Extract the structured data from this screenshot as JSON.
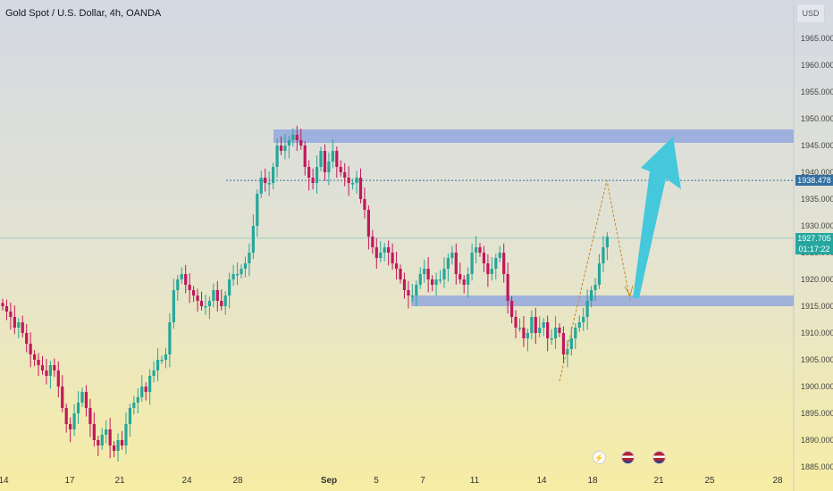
{
  "header": {
    "symbol_title": "Gold Spot / U.S. Dollar, 4h, OANDA",
    "currency": "USD"
  },
  "price_axis": {
    "labels": [
      "1965.000",
      "1960.000",
      "1955.000",
      "1950.000",
      "1945.000",
      "1940.000",
      "1935.000",
      "1930.000",
      "1925.000",
      "1920.000",
      "1915.000",
      "1910.000",
      "1905.000",
      "1900.000",
      "1895.000",
      "1890.000",
      "1885.000"
    ]
  },
  "time_axis": {
    "labels": [
      "14",
      "17",
      "21",
      "24",
      "28",
      "Sep",
      "5",
      "7",
      "11",
      "14",
      "18",
      "21",
      "25",
      "28"
    ]
  },
  "tags": {
    "level_value": "1938.478",
    "last_price": "1927.705",
    "countdown": "01:17:22"
  },
  "events": [
    {
      "icon": "lightning-icon"
    },
    {
      "icon": "us-flag-icon"
    },
    {
      "icon": "us-flag-icon"
    }
  ],
  "colors": {
    "up": "#26a69a",
    "down": "#c2185b",
    "zone": "#8fa4de",
    "arrow": "#45c8dc",
    "projection": "#c68a2a"
  },
  "chart_data": {
    "type": "candlestick",
    "title": "Gold Spot / U.S. Dollar, 4h, OANDA",
    "y_unit": "USD",
    "ylim": [
      1884,
      1968
    ],
    "grid": false,
    "close_series": [
      1915,
      1914,
      1913,
      1911,
      1912,
      1910,
      1908,
      1906,
      1905,
      1904,
      1903,
      1902,
      1904,
      1903,
      1900,
      1896,
      1893,
      1892,
      1895,
      1897,
      1899,
      1896,
      1893,
      1890,
      1889,
      1891,
      1892,
      1889,
      1888,
      1890,
      1889,
      1893,
      1896,
      1897,
      1898,
      1900,
      1899,
      1902,
      1903,
      1905,
      1905,
      1906,
      1912,
      1918,
      1920,
      1921,
      1919,
      1918,
      1917,
      1916,
      1915,
      1915,
      1916,
      1918,
      1916,
      1915,
      1917,
      1920,
      1921,
      1921,
      1922,
      1923,
      1925,
      1930,
      1936,
      1939,
      1938,
      1938,
      1941,
      1945,
      1944,
      1945,
      1946,
      1947,
      1946,
      1945,
      1941,
      1939,
      1938,
      1941,
      1944,
      1940,
      1942,
      1944,
      1941,
      1940,
      1939,
      1938,
      1938,
      1939,
      1935,
      1933,
      1928,
      1926,
      1924,
      1925,
      1926,
      1925,
      1923,
      1922,
      1920,
      1918,
      1917,
      1917,
      1919,
      1921,
      1922,
      1920,
      1919,
      1920,
      1920,
      1922,
      1924,
      1925,
      1921,
      1920,
      1919,
      1921,
      1925,
      1926,
      1925,
      1923,
      1921,
      1922,
      1924,
      1925,
      1921,
      1916,
      1913,
      1911,
      1911,
      1909,
      1910,
      1913,
      1910,
      1911,
      1912,
      1909,
      1909,
      1911,
      1910,
      1906,
      1907,
      1909,
      1911,
      1912,
      1913,
      1916,
      1918,
      1919,
      1923,
      1926,
      1928
    ],
    "resistance_zone": [
      1945.5,
      1948
    ],
    "support_zone": [
      1915,
      1917
    ],
    "dotted_level": 1938.478,
    "last_price": 1927.705,
    "projection": {
      "type": "zigzag",
      "points": [
        1901,
        1938.5,
        1916,
        1946
      ]
    },
    "x_tick_labels": [
      "14",
      "17",
      "21",
      "24",
      "28",
      "Sep",
      "5",
      "7",
      "11",
      "14",
      "18",
      "21",
      "25",
      "28"
    ]
  }
}
